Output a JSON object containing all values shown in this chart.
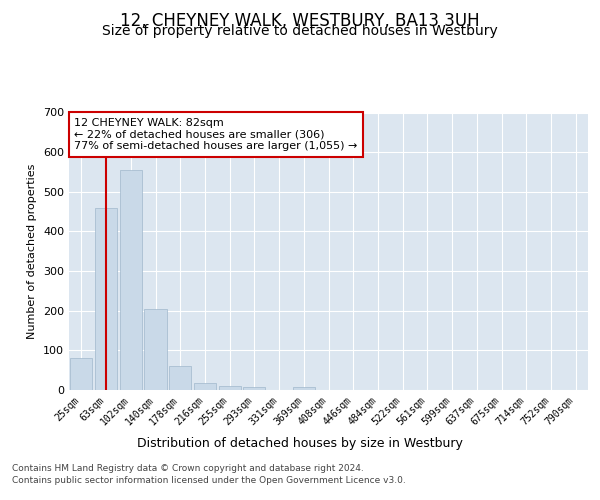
{
  "title": "12, CHEYNEY WALK, WESTBURY, BA13 3UH",
  "subtitle": "Size of property relative to detached houses in Westbury",
  "xlabel": "Distribution of detached houses by size in Westbury",
  "ylabel": "Number of detached properties",
  "bar_labels": [
    "25sqm",
    "63sqm",
    "102sqm",
    "140sqm",
    "178sqm",
    "216sqm",
    "255sqm",
    "293sqm",
    "331sqm",
    "369sqm",
    "408sqm",
    "446sqm",
    "484sqm",
    "522sqm",
    "561sqm",
    "599sqm",
    "637sqm",
    "675sqm",
    "714sqm",
    "752sqm",
    "790sqm"
  ],
  "bar_values": [
    80,
    460,
    555,
    205,
    60,
    18,
    10,
    7,
    0,
    8,
    0,
    0,
    0,
    0,
    0,
    0,
    0,
    0,
    0,
    0,
    0
  ],
  "bar_color": "#c9d9e8",
  "bar_edgecolor": "#a0b8cc",
  "vline_x": 1.0,
  "vline_color": "#cc0000",
  "annotation_text": "12 CHEYNEY WALK: 82sqm\n← 22% of detached houses are smaller (306)\n77% of semi-detached houses are larger (1,055) →",
  "annotation_box_color": "#ffffff",
  "annotation_box_edgecolor": "#cc0000",
  "ylim": [
    0,
    700
  ],
  "yticks": [
    0,
    100,
    200,
    300,
    400,
    500,
    600,
    700
  ],
  "footer_line1": "Contains HM Land Registry data © Crown copyright and database right 2024.",
  "footer_line2": "Contains public sector information licensed under the Open Government Licence v3.0.",
  "plot_background": "#dce6f0",
  "title_fontsize": 12,
  "subtitle_fontsize": 10
}
